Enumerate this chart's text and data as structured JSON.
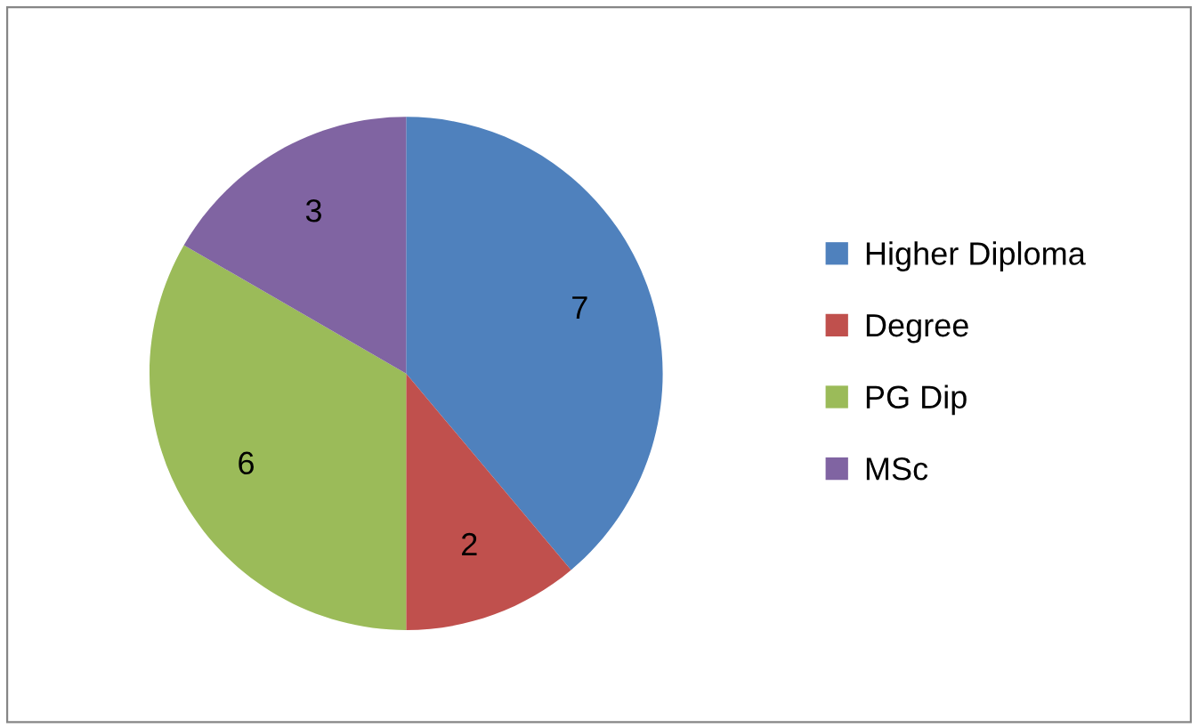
{
  "chart_data": {
    "type": "pie",
    "categories": [
      "Higher Diploma",
      "Degree",
      "PG Dip",
      "MSc"
    ],
    "values": [
      7,
      2,
      6,
      3
    ],
    "colors": [
      "#4f81bd",
      "#c0504d",
      "#9bbb59",
      "#8064a2"
    ],
    "data_labels": true,
    "legend": "right"
  }
}
